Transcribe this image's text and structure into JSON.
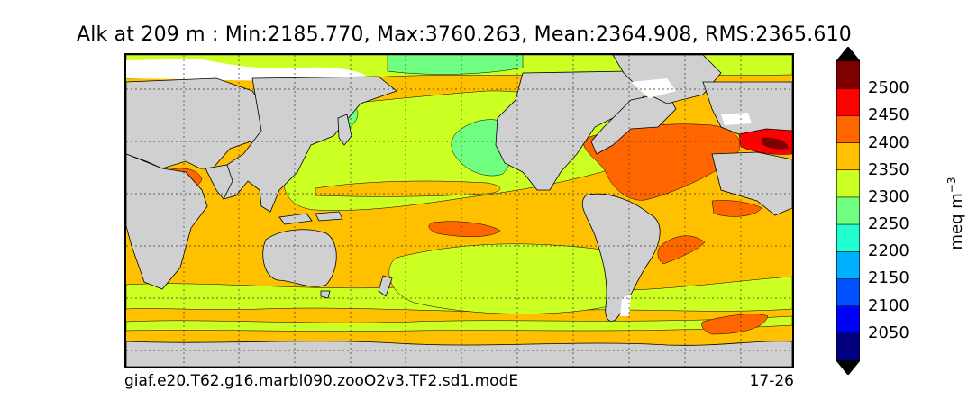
{
  "title": "Alk at 209 m : Min:2185.770, Max:3760.263, Mean:2364.908, RMS:2365.610",
  "footer": {
    "case_name": "giaf.e20.T62.g16.marbl090.zooO2v3.TF2.sd1.modE",
    "years": "17-26"
  },
  "colorbar": {
    "label_main": "meq m",
    "label_exp": "−3",
    "ticks": [
      "2500",
      "2450",
      "2400",
      "2350",
      "2300",
      "2250",
      "2200",
      "2150",
      "2100",
      "2050"
    ],
    "colors": [
      "#000080",
      "#0000ff",
      "#0050ff",
      "#00b0ff",
      "#20ffd0",
      "#70ff80",
      "#ccff22",
      "#ffc000",
      "#ff6600",
      "#ff0000",
      "#800000"
    ],
    "upper_arrow_color": "#000000",
    "lower_arrow_color": "#000000"
  },
  "map_colors": {
    "land": "#d0d0d0",
    "ice": "#ffffff",
    "c2250": "#70ff80",
    "c2300": "#ccff22",
    "c2350": "#ffc000",
    "c2400": "#ff6600",
    "c2450": "#ff0000",
    "c2500": "#800000"
  }
}
